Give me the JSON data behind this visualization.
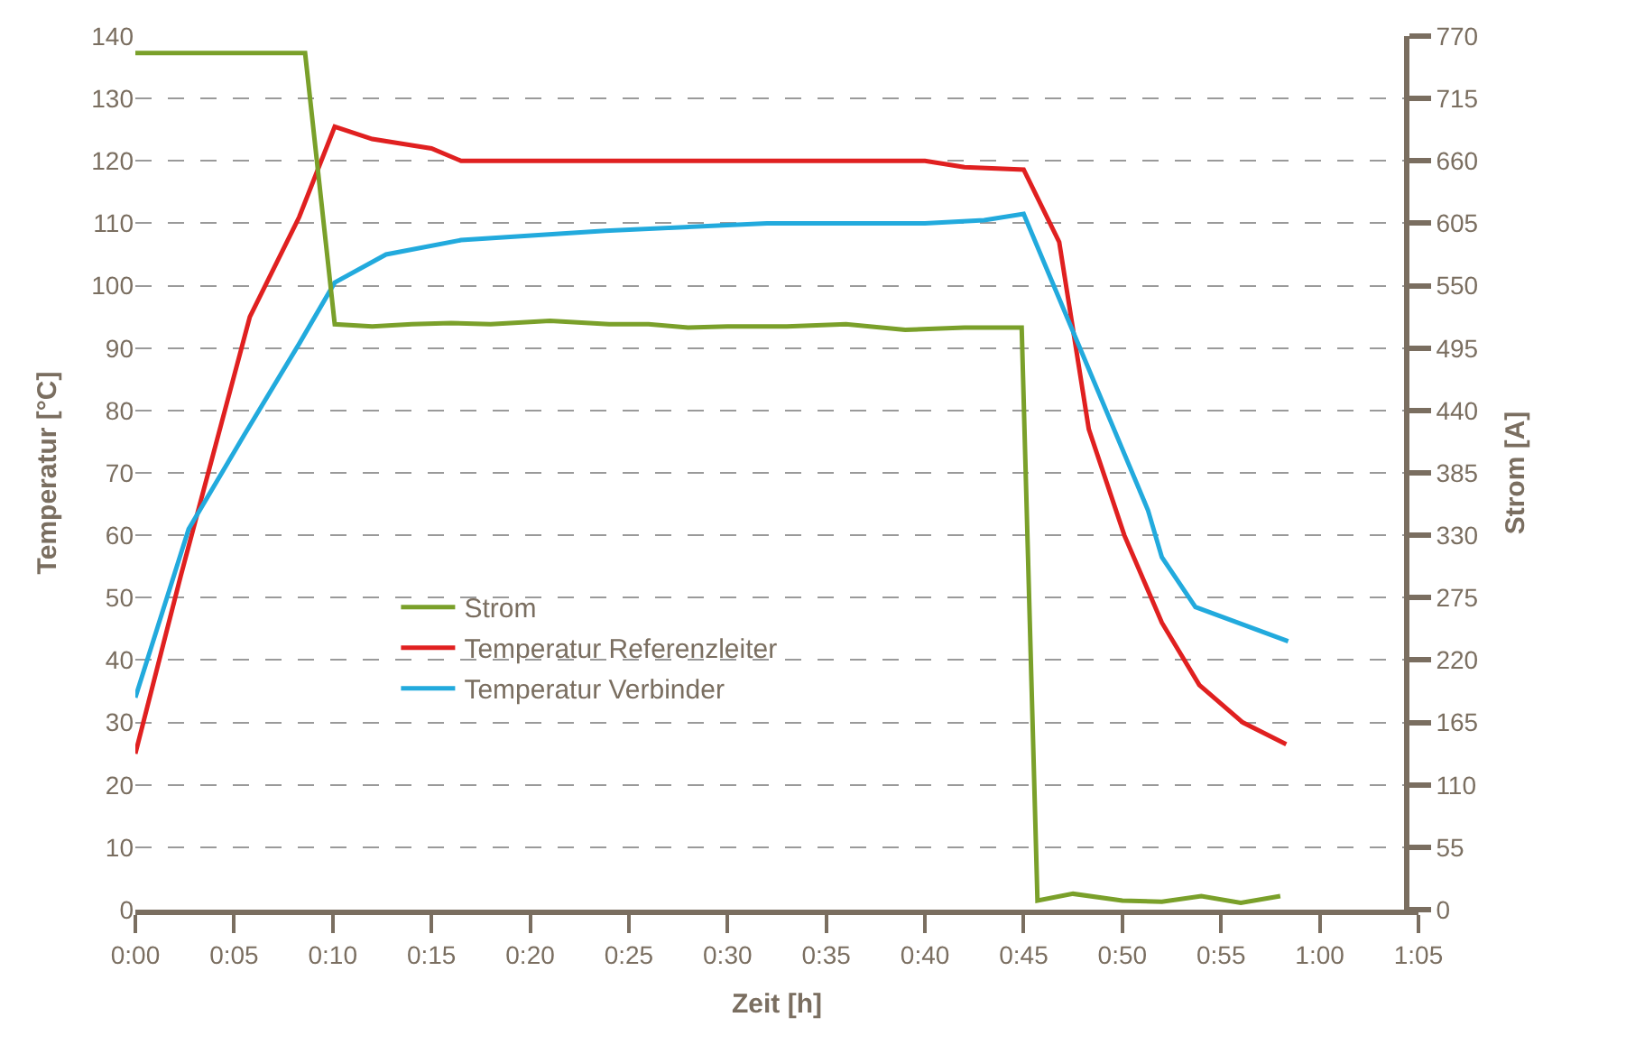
{
  "chart_data": {
    "type": "line",
    "xlabel": "Zeit [h]",
    "ylabel": "Temperatur [°C]",
    "y2label": "Strom [A]",
    "xlim": [
      0,
      65
    ],
    "xticks": [
      {
        "value": 0,
        "label": "0:00"
      },
      {
        "value": 5,
        "label": "0:05"
      },
      {
        "value": 10,
        "label": "0:10"
      },
      {
        "value": 15,
        "label": "0:15"
      },
      {
        "value": 20,
        "label": "0:20"
      },
      {
        "value": 25,
        "label": "0:25"
      },
      {
        "value": 30,
        "label": "0:30"
      },
      {
        "value": 35,
        "label": "0:35"
      },
      {
        "value": 40,
        "label": "0:40"
      },
      {
        "value": 45,
        "label": "0:45"
      },
      {
        "value": 50,
        "label": "0:50"
      },
      {
        "value": 55,
        "label": "0:55"
      },
      {
        "value": 60,
        "label": "1:00"
      },
      {
        "value": 65,
        "label": "1:05"
      }
    ],
    "ylim": [
      0,
      140
    ],
    "yticks": [
      0,
      10,
      20,
      30,
      40,
      50,
      60,
      70,
      80,
      90,
      100,
      110,
      120,
      130,
      140
    ],
    "y2lim": [
      0,
      770
    ],
    "y2ticks": [
      0,
      55,
      110,
      165,
      220,
      275,
      330,
      385,
      440,
      495,
      550,
      605,
      660,
      715,
      770
    ],
    "grid": "y",
    "legend": "bottom left",
    "line_style": "solid",
    "series": [
      {
        "name": "Strom",
        "color": "#7aa02a",
        "axis": "y2",
        "x": [
          0,
          8.6,
          10.1,
          12,
          14,
          16,
          18,
          21,
          24,
          26,
          28,
          30,
          33,
          36,
          39,
          42,
          44.9,
          45.7,
          47.5,
          50,
          52,
          54,
          56,
          58
        ],
        "values": [
          755,
          755,
          516,
          514,
          516,
          517,
          516,
          519,
          516,
          516,
          513,
          514,
          514,
          516,
          511,
          513,
          513,
          8,
          14,
          8,
          7,
          12,
          6,
          12
        ]
      },
      {
        "name": "Temperatur Referenzleiter",
        "color": "#e02020",
        "x": [
          0,
          2.3,
          5.8,
          8.3,
          10.1,
          12,
          14,
          15,
          16.5,
          25,
          35,
          40,
          42,
          45,
          46.8,
          48.3,
          50.1,
          52,
          53.9,
          56.1,
          58.3
        ],
        "values": [
          25,
          53.5,
          95,
          111,
          125.5,
          123.5,
          122.5,
          122,
          120,
          120,
          120,
          120,
          119,
          118.6,
          107,
          77,
          60,
          46,
          36,
          30,
          26.5
        ]
      },
      {
        "name": "Temperatur Verbinder",
        "color": "#22aadd",
        "x": [
          0,
          2.7,
          5.5,
          8.3,
          10.1,
          12.7,
          16.5,
          23.8,
          32,
          40,
          43,
          45,
          51.3,
          52,
          53.7,
          58.4
        ],
        "values": [
          34,
          61,
          76,
          90.7,
          100.5,
          105,
          107.3,
          108.8,
          110,
          110,
          110.5,
          111.5,
          64,
          56.5,
          48.5,
          43
        ]
      }
    ]
  }
}
